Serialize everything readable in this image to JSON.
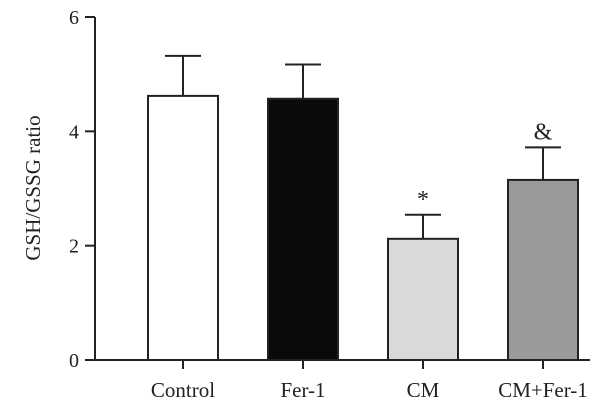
{
  "chart_data": {
    "type": "bar",
    "categories": [
      "Control",
      "Fer-1",
      "CM",
      "CM+Fer-1"
    ],
    "values": [
      4.62,
      4.57,
      2.12,
      3.15
    ],
    "errors": [
      0.7,
      0.6,
      0.42,
      0.57
    ],
    "colors": [
      "#ffffff",
      "#0a0a0a",
      "#d9d9d9",
      "#9a9a9a"
    ],
    "annotations": [
      "",
      "",
      "*",
      "&"
    ],
    "ylabel": "GSH/GSSG ratio",
    "xlabel": "",
    "title": "",
    "ylim": [
      0,
      6
    ],
    "yticks": [
      0,
      2,
      4,
      6
    ],
    "grid": false,
    "legend": "none"
  }
}
